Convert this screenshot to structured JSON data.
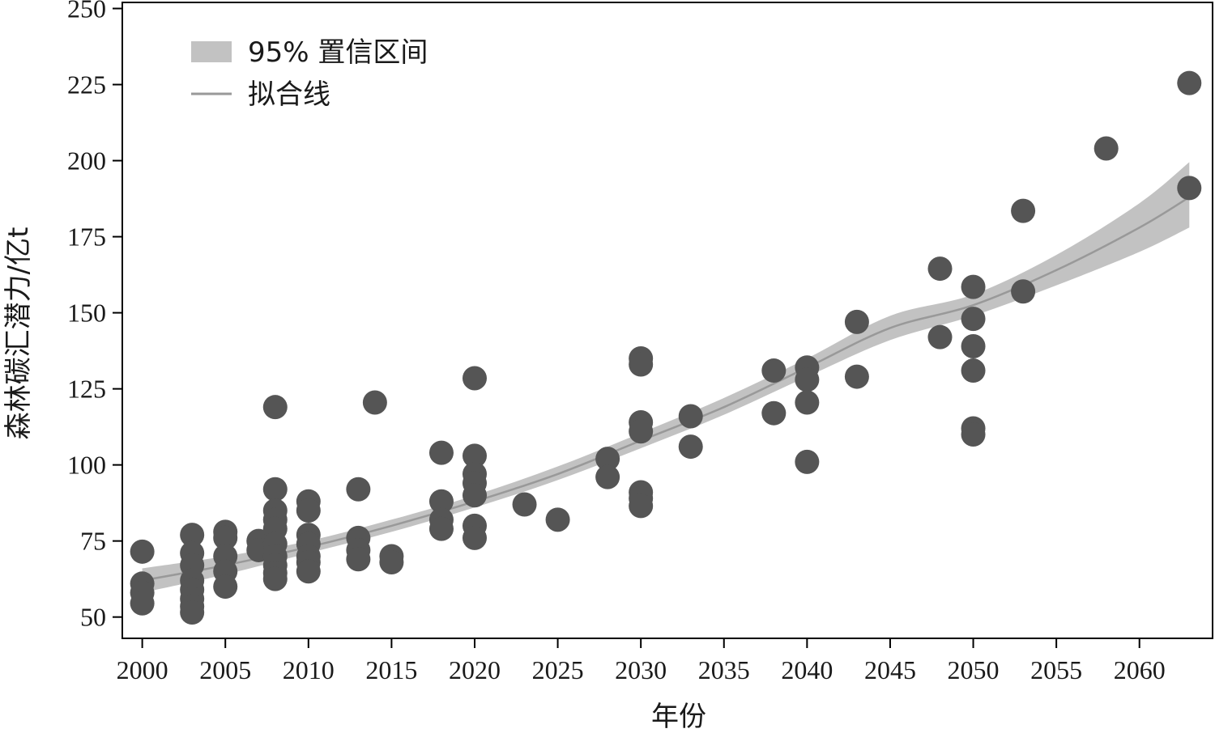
{
  "chart_data": {
    "type": "scatter",
    "xlabel": "年份",
    "ylabel": "森林碳汇潜力/亿t",
    "xlim": [
      1998.8,
      2064.4
    ],
    "ylim": [
      43,
      252
    ],
    "xticks": [
      2000,
      2005,
      2010,
      2015,
      2020,
      2025,
      2030,
      2035,
      2040,
      2045,
      2050,
      2055,
      2060
    ],
    "yticks": [
      50,
      75,
      100,
      125,
      150,
      175,
      200,
      225,
      250
    ],
    "grid": false,
    "legend_position": "top-left",
    "legend": {
      "band_label": "95% 置信区间",
      "line_label": "拟合线"
    },
    "colors": {
      "points": "#555555",
      "band": "#c2c2c2",
      "line": "#999999",
      "axis": "#000000"
    },
    "series": [
      {
        "type": "scatter",
        "points": [
          [
            2000,
            71.5
          ],
          [
            2000,
            61
          ],
          [
            2000,
            58
          ],
          [
            2000,
            54.5
          ],
          [
            2003,
            77
          ],
          [
            2003,
            71
          ],
          [
            2003,
            67
          ],
          [
            2003,
            62
          ],
          [
            2003,
            59
          ],
          [
            2003,
            56
          ],
          [
            2003,
            53.5
          ],
          [
            2003,
            51.5
          ],
          [
            2005,
            78
          ],
          [
            2005,
            76
          ],
          [
            2005,
            70
          ],
          [
            2005,
            65
          ],
          [
            2005,
            60
          ],
          [
            2007,
            75
          ],
          [
            2007,
            72
          ],
          [
            2008,
            119
          ],
          [
            2008,
            92
          ],
          [
            2008,
            85
          ],
          [
            2008,
            82
          ],
          [
            2008,
            79
          ],
          [
            2008,
            74
          ],
          [
            2008,
            70
          ],
          [
            2008,
            67
          ],
          [
            2008,
            64.5
          ],
          [
            2008,
            62.5
          ],
          [
            2010,
            88
          ],
          [
            2010,
            85
          ],
          [
            2010,
            77
          ],
          [
            2010,
            74
          ],
          [
            2010,
            70
          ],
          [
            2010,
            68
          ],
          [
            2010,
            65
          ],
          [
            2013,
            92
          ],
          [
            2013,
            76
          ],
          [
            2013,
            72
          ],
          [
            2013,
            69
          ],
          [
            2014,
            120.5
          ],
          [
            2015,
            70
          ],
          [
            2015,
            68
          ],
          [
            2018,
            104
          ],
          [
            2018,
            88
          ],
          [
            2018,
            82
          ],
          [
            2018,
            79
          ],
          [
            2020,
            128.5
          ],
          [
            2020,
            103
          ],
          [
            2020,
            97
          ],
          [
            2020,
            94
          ],
          [
            2020,
            90
          ],
          [
            2020,
            80
          ],
          [
            2020,
            76
          ],
          [
            2023,
            87
          ],
          [
            2025,
            82
          ],
          [
            2028,
            102
          ],
          [
            2028,
            96
          ],
          [
            2030,
            135
          ],
          [
            2030,
            133
          ],
          [
            2030,
            114
          ],
          [
            2030,
            111
          ],
          [
            2030,
            91
          ],
          [
            2030,
            89
          ],
          [
            2030,
            86.5
          ],
          [
            2033,
            116
          ],
          [
            2033,
            106
          ],
          [
            2038,
            131
          ],
          [
            2038,
            117
          ],
          [
            2040,
            132
          ],
          [
            2040,
            128
          ],
          [
            2040,
            120.5
          ],
          [
            2040,
            101
          ],
          [
            2043,
            147
          ],
          [
            2043,
            129
          ],
          [
            2048,
            164.5
          ],
          [
            2048,
            142
          ],
          [
            2050,
            158.5
          ],
          [
            2050,
            148
          ],
          [
            2050,
            139
          ],
          [
            2050,
            131
          ],
          [
            2050,
            112
          ],
          [
            2050,
            110
          ],
          [
            2053,
            183.5
          ],
          [
            2053,
            157
          ],
          [
            2058,
            204
          ],
          [
            2063,
            225.5
          ],
          [
            2063,
            191
          ]
        ]
      },
      {
        "type": "line",
        "name": "拟合线",
        "x": [
          2000,
          2005,
          2010,
          2015,
          2020,
          2025,
          2030,
          2035,
          2040,
          2045,
          2050,
          2055,
          2060,
          2063
        ],
        "y": [
          62,
          67,
          73,
          80,
          88,
          97,
          108,
          119,
          132,
          145,
          152.5,
          164,
          178,
          188
        ],
        "ci_lower": [
          58,
          64,
          71,
          78,
          86,
          95,
          105.5,
          116.5,
          129,
          141,
          149,
          159,
          170,
          178
        ],
        "ci_upper": [
          66,
          70,
          75,
          82,
          90,
          99.5,
          110.5,
          122,
          135,
          149,
          156,
          169,
          186,
          199.5
        ]
      }
    ]
  }
}
